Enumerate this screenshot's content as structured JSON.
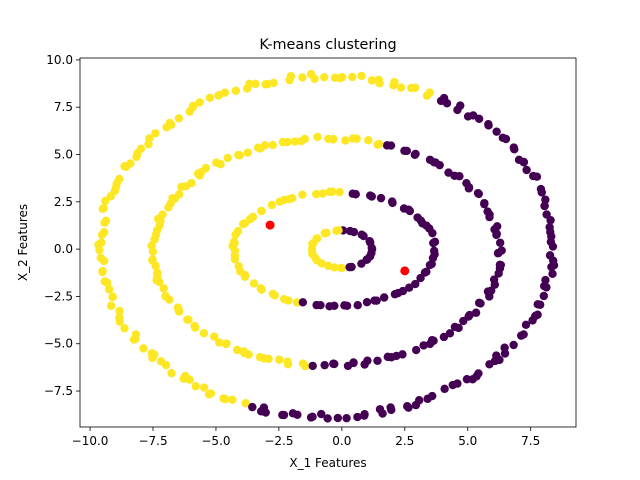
{
  "chart_data": {
    "type": "scatter",
    "title": "K-means clustering",
    "xlabel": "X_1 Features",
    "ylabel": "X_2 Features",
    "xlim": [
      -10.4,
      9.3
    ],
    "ylim": [
      -9.4,
      10.1
    ],
    "grid": false,
    "legend": "none",
    "xticks": [
      {
        "value": -10.0,
        "label": "−10.0"
      },
      {
        "value": -7.5,
        "label": "−7.5"
      },
      {
        "value": -5.0,
        "label": "−5.0"
      },
      {
        "value": -2.5,
        "label": "−2.5"
      },
      {
        "value": 0.0,
        "label": "0.0"
      },
      {
        "value": 2.5,
        "label": "2.5"
      },
      {
        "value": 5.0,
        "label": "5.0"
      },
      {
        "value": 7.5,
        "label": "7.5"
      }
    ],
    "yticks": [
      {
        "value": -7.5,
        "label": "−7.5"
      },
      {
        "value": -5.0,
        "label": "−5.0"
      },
      {
        "value": -2.5,
        "label": "−2.5"
      },
      {
        "value": 0.0,
        "label": "0.0"
      },
      {
        "value": 2.5,
        "label": "2.5"
      },
      {
        "value": 5.0,
        "label": "5.0"
      },
      {
        "value": 7.5,
        "label": "7.5"
      },
      {
        "value": 10.0,
        "label": "10.0"
      }
    ],
    "colors": {
      "cluster_0": "#440154",
      "cluster_1": "#fde725",
      "centroids": "#ff0000"
    },
    "centroids": [
      {
        "x": -2.85,
        "y": 1.27
      },
      {
        "x": 2.5,
        "y": -1.15
      }
    ],
    "rings": [
      {
        "cx": 0.0,
        "cy": 0.0,
        "rx": 1.2,
        "ry": 1.0,
        "n": 34,
        "boundary_angles_deg": [
          -90,
          90
        ]
      },
      {
        "cx": -0.3,
        "cy": 0.0,
        "rx": 4.0,
        "ry": 3.0,
        "n": 80,
        "boundary_angles_deg": [
          -110,
          85
        ]
      },
      {
        "cx": -0.6,
        "cy": -0.15,
        "rx": 6.9,
        "ry": 6.0,
        "n": 150,
        "boundary_angles_deg": [
          -95,
          70
        ]
      },
      {
        "cx": -0.6,
        "cy": 0.15,
        "rx": 9.0,
        "ry": 9.0,
        "n": 190,
        "boundary_angles_deg": [
          -110,
          63
        ]
      }
    ]
  }
}
